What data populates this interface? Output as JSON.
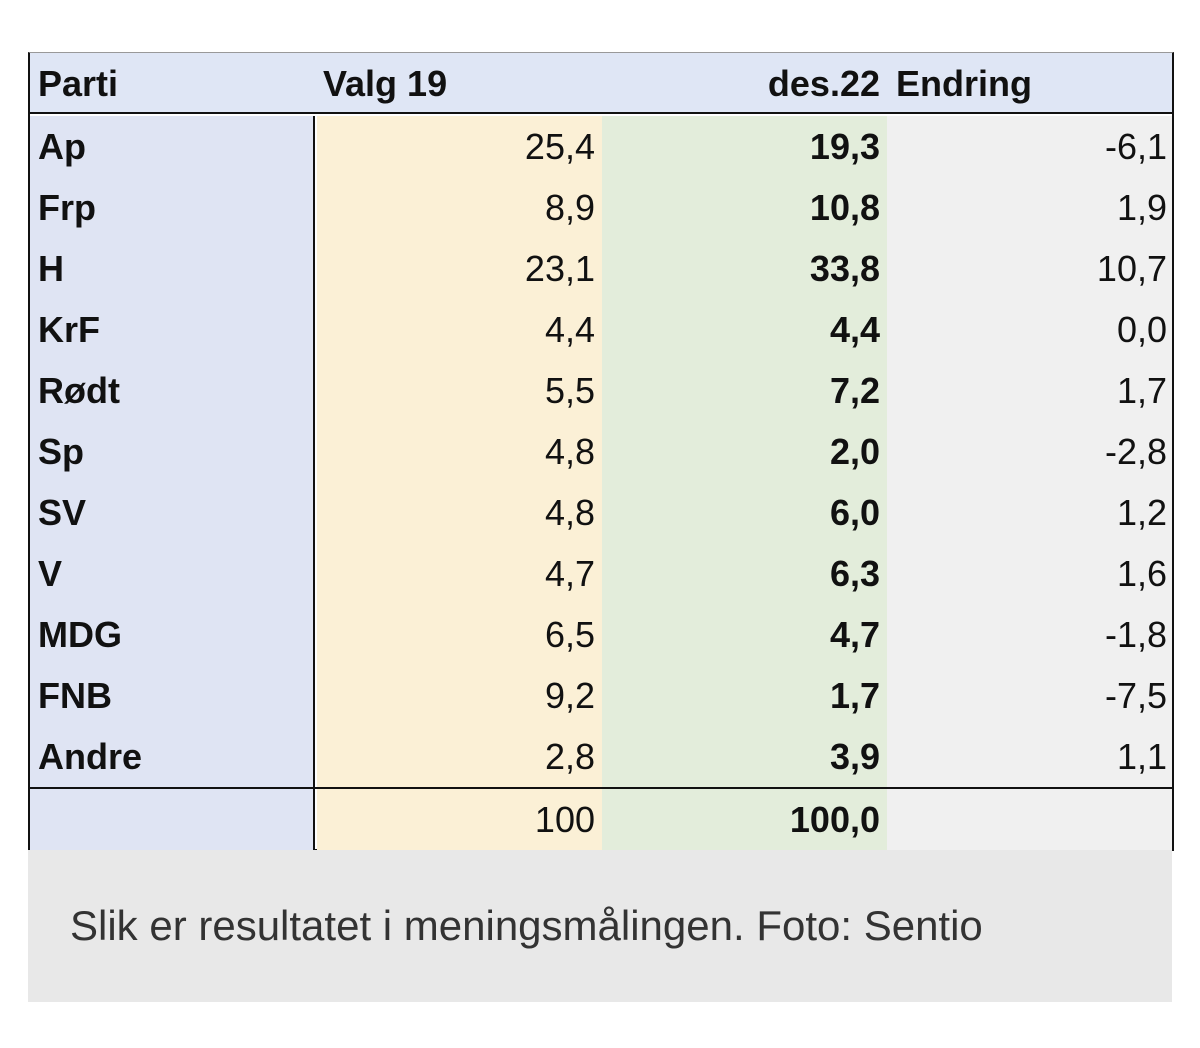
{
  "table": {
    "header": [
      "Parti",
      "Valg 19",
      "des.22",
      "Endring"
    ],
    "rows": [
      [
        "Ap",
        "25,4",
        "19,3",
        "-6,1"
      ],
      [
        "Frp",
        "8,9",
        "10,8",
        "1,9"
      ],
      [
        "H",
        "23,1",
        "33,8",
        "10,7"
      ],
      [
        "KrF",
        "4,4",
        "4,4",
        "0,0"
      ],
      [
        "Rødt",
        "5,5",
        "7,2",
        "1,7"
      ],
      [
        "Sp",
        "4,8",
        "2,0",
        "-2,8"
      ],
      [
        "SV",
        "4,8",
        "6,0",
        "1,2"
      ],
      [
        "V",
        "4,7",
        "6,3",
        "1,6"
      ],
      [
        "MDG",
        "6,5",
        "4,7",
        "-1,8"
      ],
      [
        "FNB",
        "9,2",
        "1,7",
        "-7,5"
      ],
      [
        "Andre",
        "2,8",
        "3,9",
        "1,1"
      ]
    ],
    "total": [
      "100",
      "100,0"
    ]
  },
  "caption": "Slik er resultatet i meningsmålingen. Foto: Sentio"
}
